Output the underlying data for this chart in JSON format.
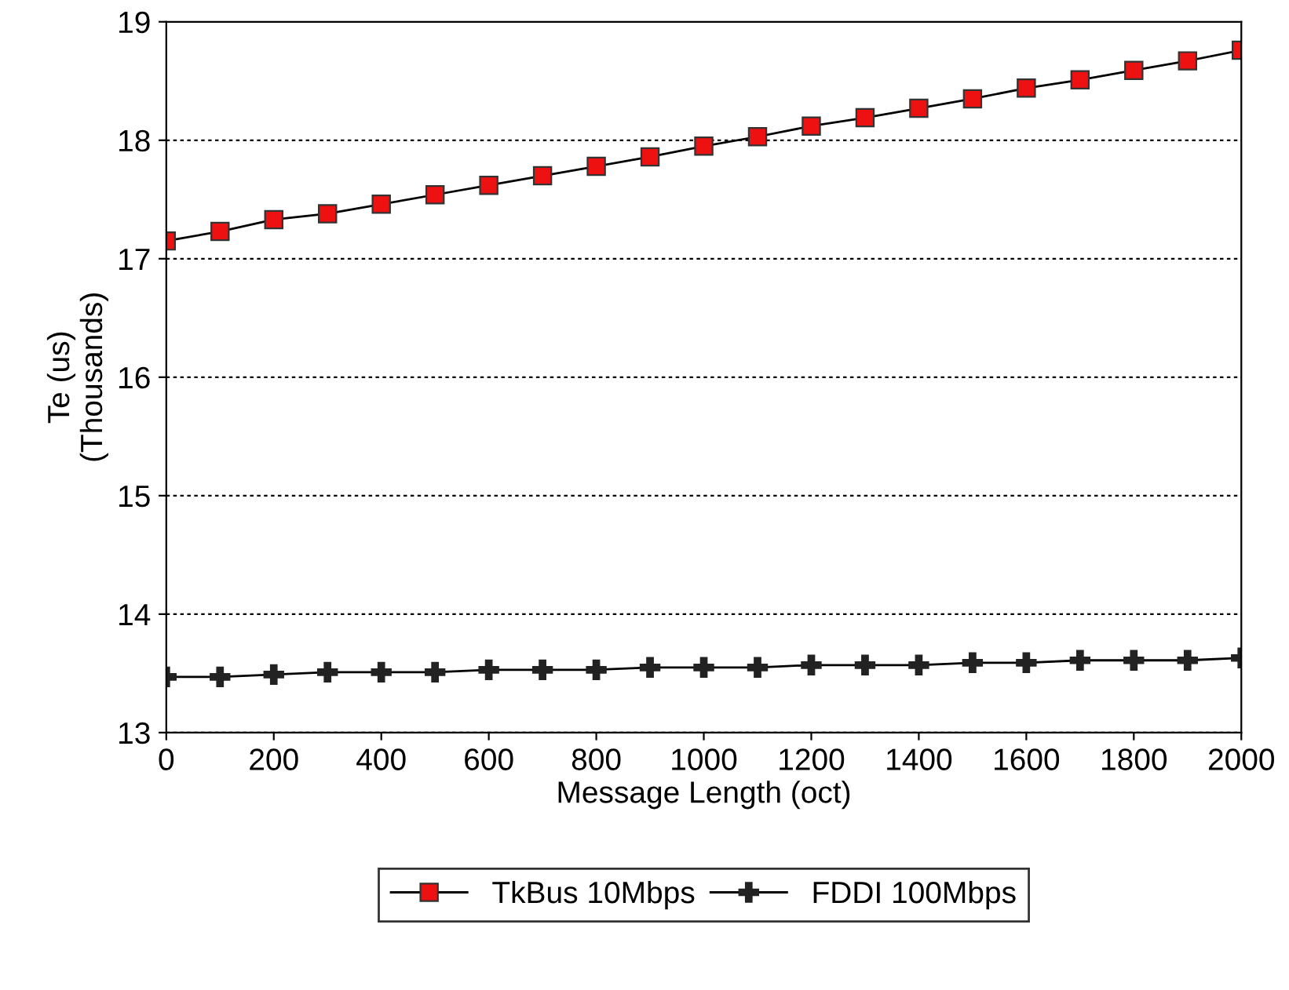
{
  "chart_data": {
    "type": "line",
    "xlabel": "Message Length (oct)",
    "ylabel": "Te (us)\n(Thousands)",
    "x": [
      0,
      100,
      200,
      300,
      400,
      500,
      600,
      700,
      800,
      900,
      1000,
      1100,
      1200,
      1300,
      1400,
      1500,
      1600,
      1700,
      1800,
      1900,
      2000
    ],
    "series": [
      {
        "name": "TkBus 10Mbps",
        "color": "#ee1111",
        "marker": "square",
        "values": [
          17.15,
          17.23,
          17.33,
          17.38,
          17.46,
          17.54,
          17.62,
          17.7,
          17.78,
          17.86,
          17.95,
          18.03,
          18.12,
          18.19,
          18.27,
          18.35,
          18.44,
          18.51,
          18.59,
          18.67,
          18.76
        ]
      },
      {
        "name": "FDDI 100Mbps",
        "color": "#222222",
        "marker": "cross",
        "values": [
          13.47,
          13.47,
          13.49,
          13.51,
          13.51,
          13.51,
          13.53,
          13.53,
          13.53,
          13.55,
          13.55,
          13.55,
          13.57,
          13.57,
          13.57,
          13.59,
          13.59,
          13.61,
          13.61,
          13.61,
          13.63
        ]
      }
    ],
    "xlim": [
      0,
      2000
    ],
    "xticks": [
      0,
      200,
      400,
      600,
      800,
      1000,
      1200,
      1400,
      1600,
      1800,
      2000
    ],
    "ylim": [
      13,
      19
    ],
    "yticks": [
      13,
      14,
      15,
      16,
      17,
      18,
      19
    ],
    "grid": "y",
    "legend": "bottom",
    "line_style": "solid"
  }
}
